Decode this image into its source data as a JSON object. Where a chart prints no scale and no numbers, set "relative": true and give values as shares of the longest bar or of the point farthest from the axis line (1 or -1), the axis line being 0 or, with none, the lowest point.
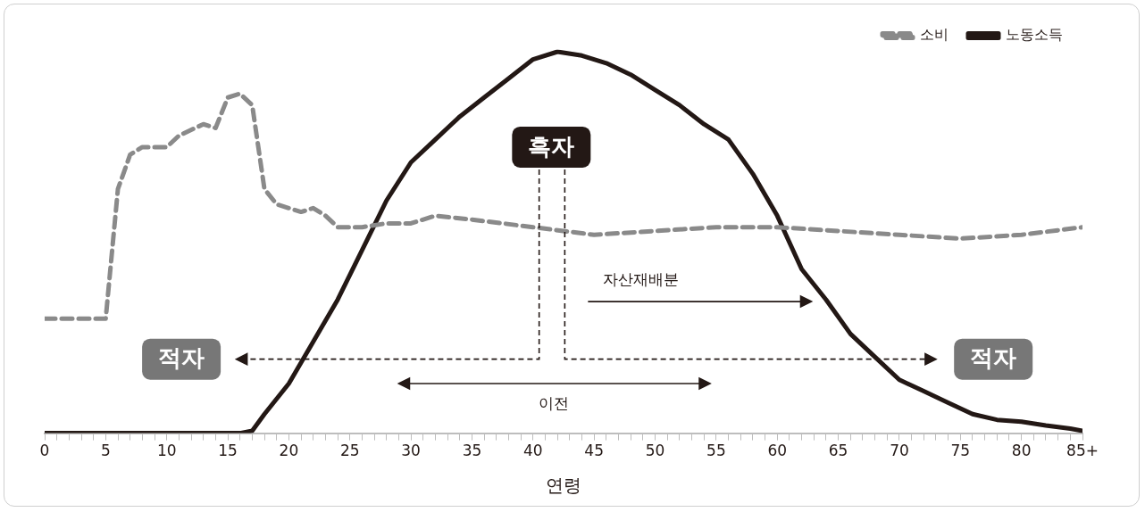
{
  "chart_data": {
    "type": "line",
    "relative": true,
    "xlabel": "연령",
    "xlim": [
      0,
      85
    ],
    "xticks": [
      0,
      {
        "value": 1,
        "label": null
      },
      {
        "value": 2,
        "label": null
      },
      {
        "value": 3,
        "label": null
      },
      {
        "value": 4,
        "label": null
      },
      5,
      {
        "value": 6,
        "label": null
      },
      {
        "value": 7,
        "label": null
      },
      {
        "value": 8,
        "label": null
      },
      {
        "value": 9,
        "label": null
      },
      10,
      {
        "value": 11,
        "label": null
      },
      {
        "value": 12,
        "label": null
      },
      {
        "value": 13,
        "label": null
      },
      {
        "value": 14,
        "label": null
      },
      15,
      {
        "value": 16,
        "label": null
      },
      {
        "value": 17,
        "label": null
      },
      {
        "value": 18,
        "label": null
      },
      {
        "value": 19,
        "label": null
      },
      20,
      {
        "value": 21,
        "label": null
      },
      {
        "value": 22,
        "label": null
      },
      {
        "value": 23,
        "label": null
      },
      {
        "value": 24,
        "label": null
      },
      25,
      {
        "value": 26,
        "label": null
      },
      {
        "value": 27,
        "label": null
      },
      {
        "value": 28,
        "label": null
      },
      {
        "value": 29,
        "label": null
      },
      30,
      {
        "value": 31,
        "label": null
      },
      {
        "value": 32,
        "label": null
      },
      {
        "value": 33,
        "label": null
      },
      {
        "value": 34,
        "label": null
      },
      35,
      {
        "value": 36,
        "label": null
      },
      {
        "value": 37,
        "label": null
      },
      {
        "value": 38,
        "label": null
      },
      {
        "value": 39,
        "label": null
      },
      40,
      {
        "value": 41,
        "label": null
      },
      {
        "value": 42,
        "label": null
      },
      {
        "value": 43,
        "label": null
      },
      {
        "value": 44,
        "label": null
      },
      45,
      {
        "value": 46,
        "label": null
      },
      {
        "value": 47,
        "label": null
      },
      {
        "value": 48,
        "label": null
      },
      {
        "value": 49,
        "label": null
      },
      50,
      {
        "value": 51,
        "label": null
      },
      {
        "value": 52,
        "label": null
      },
      {
        "value": 53,
        "label": null
      },
      {
        "value": 54,
        "label": null
      },
      55,
      {
        "value": 56,
        "label": null
      },
      {
        "value": 57,
        "label": null
      },
      {
        "value": 58,
        "label": null
      },
      {
        "value": 59,
        "label": null
      },
      60,
      {
        "value": 61,
        "label": null
      },
      {
        "value": 62,
        "label": null
      },
      {
        "value": 63,
        "label": null
      },
      {
        "value": 64,
        "label": null
      },
      65,
      {
        "value": 66,
        "label": null
      },
      {
        "value": 67,
        "label": null
      },
      {
        "value": 68,
        "label": null
      },
      {
        "value": 69,
        "label": null
      },
      70,
      {
        "value": 71,
        "label": null
      },
      {
        "value": 72,
        "label": null
      },
      {
        "value": 73,
        "label": null
      },
      {
        "value": 74,
        "label": null
      },
      75,
      {
        "value": 76,
        "label": null
      },
      {
        "value": 77,
        "label": null
      },
      {
        "value": 78,
        "label": null
      },
      {
        "value": 79,
        "label": null
      },
      80,
      {
        "value": 81,
        "label": null
      },
      {
        "value": 82,
        "label": null
      },
      {
        "value": 83,
        "label": null
      },
      {
        "value": 84,
        "label": null
      },
      {
        "value": 85,
        "label": "85+"
      }
    ],
    "legend": "top right",
    "marker": "none",
    "series": [
      {
        "name": "소비",
        "color": "#8a8a8a",
        "line_style": "dashed",
        "x": [
          0,
          5,
          6,
          7,
          8,
          10,
          11,
          13,
          14,
          15,
          16,
          17,
          18,
          19,
          20,
          21,
          22,
          23,
          24,
          26,
          28,
          30,
          32,
          35,
          40,
          45,
          50,
          55,
          60,
          65,
          70,
          75,
          80,
          85
        ],
        "values": [
          0.3,
          0.3,
          0.64,
          0.73,
          0.75,
          0.75,
          0.78,
          0.81,
          0.8,
          0.88,
          0.89,
          0.86,
          0.64,
          0.6,
          0.59,
          0.58,
          0.59,
          0.57,
          0.54,
          0.54,
          0.55,
          0.55,
          0.57,
          0.56,
          0.54,
          0.52,
          0.53,
          0.54,
          0.54,
          0.53,
          0.52,
          0.51,
          0.52,
          0.54
        ]
      },
      {
        "name": "노동소득",
        "color": "#231815",
        "line_style": "solid",
        "x": [
          0,
          16,
          17,
          18,
          20,
          22,
          24,
          26,
          28,
          30,
          32,
          34,
          36,
          38,
          40,
          42,
          44,
          46,
          48,
          50,
          52,
          54,
          56,
          58,
          60,
          62,
          64,
          66,
          68,
          70,
          72,
          74,
          76,
          78,
          80,
          82,
          84,
          85
        ],
        "values": [
          0,
          0,
          0.006,
          0.05,
          0.13,
          0.24,
          0.35,
          0.48,
          0.61,
          0.71,
          0.77,
          0.83,
          0.88,
          0.93,
          0.98,
          1.0,
          0.99,
          0.97,
          0.94,
          0.9,
          0.86,
          0.81,
          0.77,
          0.68,
          0.57,
          0.43,
          0.35,
          0.26,
          0.2,
          0.14,
          0.11,
          0.08,
          0.05,
          0.035,
          0.03,
          0.02,
          0.012,
          0.006
        ]
      }
    ],
    "annotations": [
      "흑자",
      "적자",
      "적자",
      "자산재배분",
      "이전"
    ]
  }
}
